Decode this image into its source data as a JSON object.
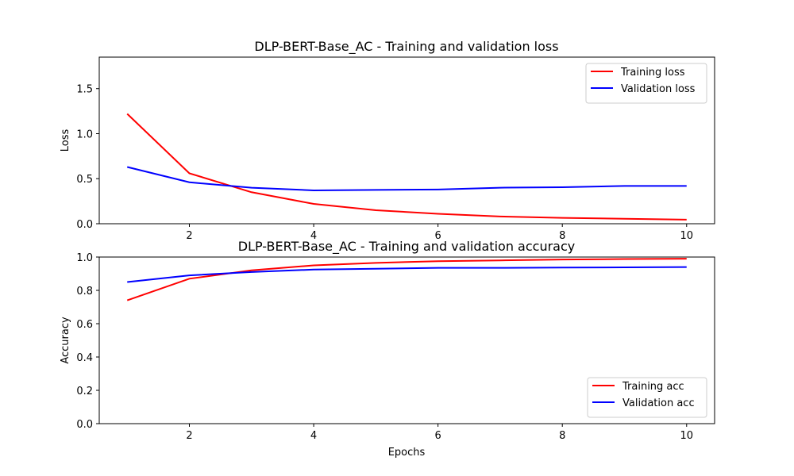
{
  "chart_data": [
    {
      "type": "line",
      "title": "DLP-BERT-Base_AC - Training and validation loss",
      "xlabel": "",
      "ylabel": "Loss",
      "x": [
        1,
        2,
        3,
        4,
        5,
        6,
        7,
        8,
        9,
        10
      ],
      "xlim": [
        0.55,
        10.45
      ],
      "ylim": [
        0,
        1.85
      ],
      "xticks": [
        2,
        4,
        6,
        8,
        10
      ],
      "yticks": [
        0.0,
        0.5,
        1.0,
        1.5
      ],
      "ytick_labels": [
        "0.0",
        "0.5",
        "1.0",
        "1.5"
      ],
      "legend_position": "upper right",
      "series": [
        {
          "name": "Training loss",
          "color": "#ff0000",
          "values": [
            1.22,
            0.56,
            0.35,
            0.22,
            0.15,
            0.11,
            0.08,
            0.065,
            0.055,
            0.045
          ]
        },
        {
          "name": "Validation loss",
          "color": "#0000ff",
          "values": [
            0.63,
            0.46,
            0.4,
            0.37,
            0.375,
            0.38,
            0.4,
            0.405,
            0.42,
            0.42
          ]
        }
      ]
    },
    {
      "type": "line",
      "title": "DLP-BERT-Base_AC - Training and validation accuracy",
      "xlabel": "Epochs",
      "ylabel": "Accuracy",
      "x": [
        1,
        2,
        3,
        4,
        5,
        6,
        7,
        8,
        9,
        10
      ],
      "xlim": [
        0.55,
        10.45
      ],
      "ylim": [
        0,
        1.0
      ],
      "xticks": [
        2,
        4,
        6,
        8,
        10
      ],
      "yticks": [
        0.0,
        0.2,
        0.4,
        0.6,
        0.8,
        1.0
      ],
      "ytick_labels": [
        "0.0",
        "0.2",
        "0.4",
        "0.6",
        "0.8",
        "1.0"
      ],
      "legend_position": "lower right",
      "series": [
        {
          "name": "Training acc",
          "color": "#ff0000",
          "values": [
            0.74,
            0.87,
            0.92,
            0.95,
            0.965,
            0.975,
            0.98,
            0.985,
            0.988,
            0.99
          ]
        },
        {
          "name": "Validation acc",
          "color": "#0000ff",
          "values": [
            0.85,
            0.89,
            0.91,
            0.925,
            0.93,
            0.935,
            0.935,
            0.937,
            0.938,
            0.94
          ]
        }
      ]
    }
  ]
}
